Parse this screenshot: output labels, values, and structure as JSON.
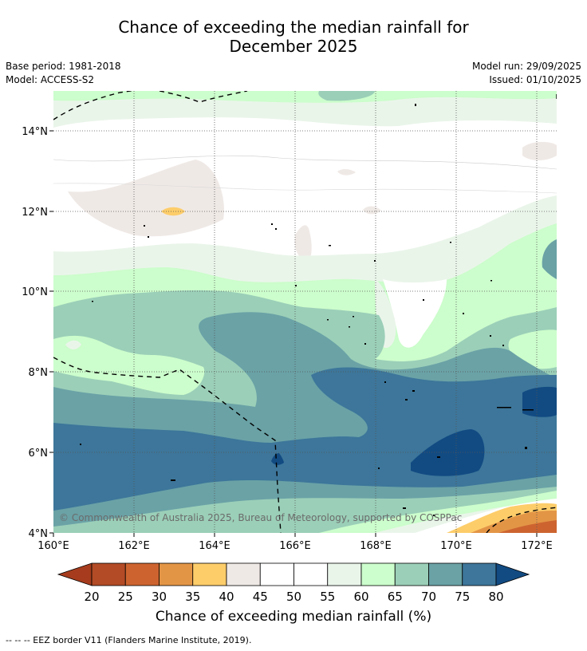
{
  "header": {
    "title_line1": "Chance of exceeding the median rainfall for",
    "title_line2": "December 2025"
  },
  "meta": {
    "base_period": "Base period: 1981-2018",
    "model": "Model: ACCESS-S2",
    "model_run": "Model run: 29/09/2025",
    "issued": "Issued: 01/10/2025"
  },
  "map": {
    "lat_labels": [
      "14°N",
      "12°N",
      "10°N",
      "8°N",
      "6°N",
      "4°N"
    ],
    "lon_labels": [
      "160°E",
      "162°E",
      "164°E",
      "166°E",
      "168°E",
      "170°E",
      "172°E"
    ],
    "copyright": "© Commonwealth of Australia 2025, Bureau of Meteorology, supported by COSPPac"
  },
  "colorbar": {
    "ticks": [
      "20",
      "25",
      "30",
      "35",
      "40",
      "45",
      "50",
      "55",
      "60",
      "65",
      "70",
      "75",
      "80"
    ],
    "colors": [
      "#a63c1d",
      "#b24b26",
      "#cd6430",
      "#e39546",
      "#fdcd6a",
      "#efe9e6",
      "#ffffff",
      "#ffffff",
      "#eaf5ea",
      "#ccfdcc",
      "#9bcfb8",
      "#6aa2a6",
      "#3d769a",
      "#124b82"
    ],
    "label": "Chance of exceeding median rainfall (%)"
  },
  "footer": {
    "eez_note": "--  --  -- EEZ border V11 (Flanders Marine Institute, 2019)."
  }
}
